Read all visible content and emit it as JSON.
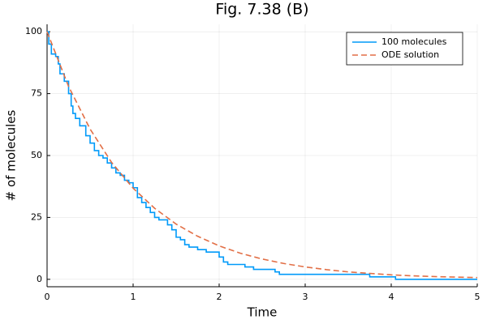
{
  "chart_data": {
    "type": "line",
    "title": "Fig. 7.38 (B)",
    "xlabel": "Time",
    "ylabel": "# of molecules",
    "xlim": [
      0,
      5
    ],
    "ylim": [
      -3,
      103
    ],
    "xticks": [
      0,
      1,
      2,
      3,
      4,
      5
    ],
    "yticks": [
      0,
      25,
      50,
      75,
      100
    ],
    "grid": true,
    "legend": "top-right",
    "series": [
      {
        "name": "100 molecules",
        "color": "#009af9",
        "dash": false,
        "x": [
          0,
          0.02,
          0.02,
          0.05,
          0.05,
          0.1,
          0.1,
          0.13,
          0.13,
          0.15,
          0.15,
          0.2,
          0.2,
          0.25,
          0.25,
          0.28,
          0.28,
          0.3,
          0.3,
          0.33,
          0.33,
          0.38,
          0.38,
          0.45,
          0.45,
          0.5,
          0.5,
          0.55,
          0.55,
          0.6,
          0.6,
          0.65,
          0.65,
          0.7,
          0.7,
          0.75,
          0.75,
          0.8,
          0.8,
          0.85,
          0.85,
          0.9,
          0.9,
          0.95,
          0.95,
          1,
          1,
          1.05,
          1.05,
          1.1,
          1.1,
          1.15,
          1.15,
          1.2,
          1.2,
          1.25,
          1.25,
          1.3,
          1.3,
          1.4,
          1.4,
          1.45,
          1.45,
          1.5,
          1.5,
          1.55,
          1.55,
          1.6,
          1.6,
          1.65,
          1.65,
          1.75,
          1.75,
          1.85,
          1.85,
          2,
          2,
          2.05,
          2.05,
          2.1,
          2.1,
          2.3,
          2.3,
          2.4,
          2.4,
          2.65,
          2.65,
          2.7,
          2.7,
          3.75,
          3.75,
          4.05,
          4.05,
          5
        ],
        "values": [
          100,
          100,
          95,
          95,
          91,
          91,
          90,
          90,
          87,
          87,
          83,
          83,
          80,
          80,
          75,
          75,
          70,
          70,
          67,
          67,
          65,
          65,
          62,
          62,
          58,
          58,
          55,
          55,
          52,
          52,
          50,
          50,
          49,
          49,
          47,
          47,
          45,
          45,
          43,
          43,
          42,
          42,
          40,
          40,
          39,
          39,
          37,
          37,
          33,
          33,
          31,
          31,
          29,
          29,
          27,
          27,
          25,
          25,
          24,
          24,
          22,
          22,
          20,
          20,
          17,
          17,
          16,
          16,
          14,
          14,
          13,
          13,
          12,
          12,
          11,
          11,
          9,
          9,
          7,
          7,
          6,
          6,
          5,
          5,
          4,
          4,
          3,
          3,
          2,
          2,
          1,
          1,
          0,
          0
        ]
      },
      {
        "name": "ODE solution",
        "color": "#e26f46",
        "dash": true,
        "x": [
          0,
          0.25,
          0.5,
          0.75,
          1,
          1.25,
          1.5,
          1.75,
          2,
          2.25,
          2.5,
          2.75,
          3,
          3.25,
          3.5,
          3.75,
          4,
          4.25,
          4.5,
          4.75,
          5
        ],
        "values": [
          100,
          77.9,
          60.7,
          47.2,
          36.8,
          28.7,
          22.3,
          17.4,
          13.5,
          10.5,
          8.2,
          6.4,
          5.0,
          3.9,
          3.0,
          2.4,
          1.8,
          1.4,
          1.1,
          0.9,
          0.7
        ]
      }
    ]
  }
}
